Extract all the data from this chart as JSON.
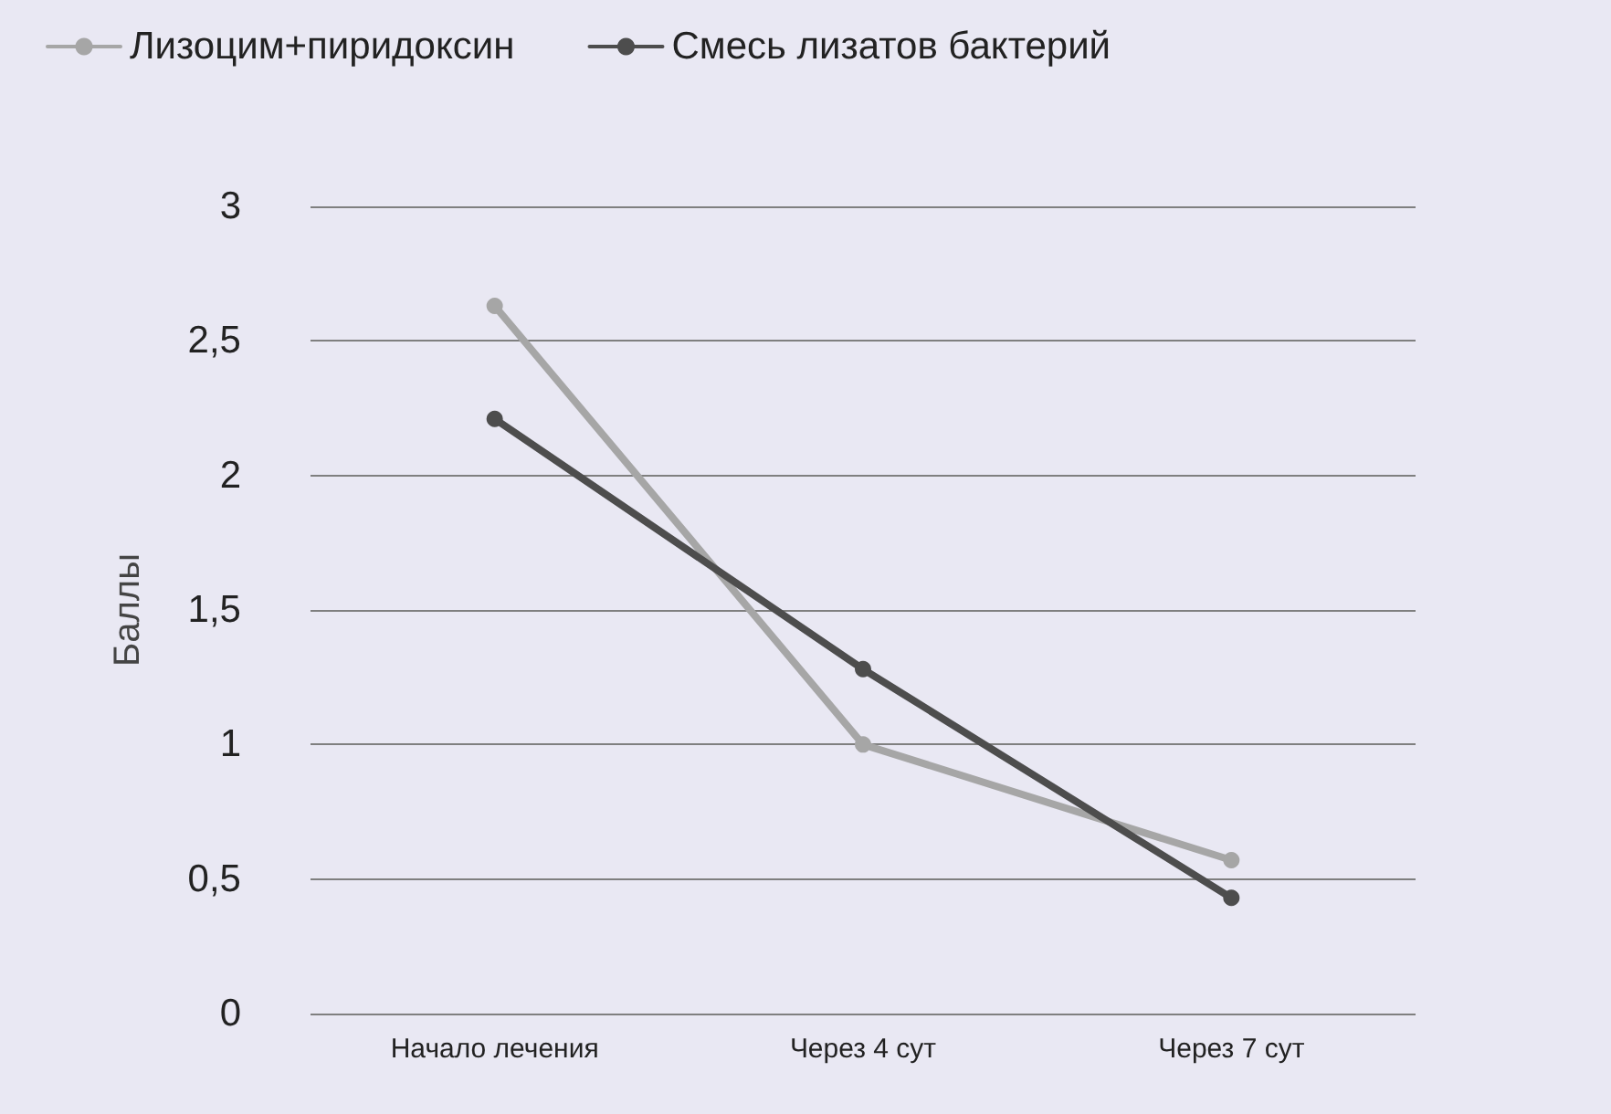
{
  "chart_data": {
    "type": "line",
    "ylabel": "Баллы",
    "categories": [
      "Начало лечения",
      "Через 4 сут",
      "Через 7 сут"
    ],
    "series": [
      {
        "name": "Лизоцим+пиридоксин",
        "color": "#a6a6a6",
        "values": [
          2.63,
          1.0,
          0.57
        ]
      },
      {
        "name": "Смесь лизатов бактерий",
        "color": "#4d4d4d",
        "values": [
          2.21,
          1.28,
          0.43
        ]
      }
    ],
    "ylim": [
      0,
      3
    ],
    "yticks": [
      0,
      {
        "value": 0.5,
        "label": "0,5"
      },
      1,
      {
        "value": 1.5,
        "label": "1,5"
      },
      2,
      {
        "value": 2.5,
        "label": "2,5"
      },
      3
    ],
    "grid": "y",
    "legend": "top left",
    "marker": "circle",
    "line_style": "solid"
  }
}
